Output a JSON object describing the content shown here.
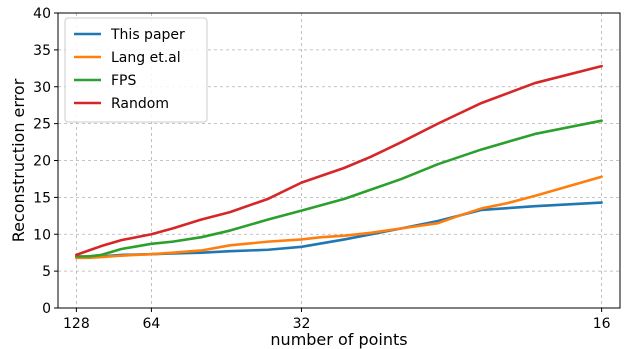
{
  "chart_data": {
    "type": "line",
    "title": "",
    "xlabel": "number of points",
    "ylabel": "Reconstruction error",
    "x_scale": "reciprocal",
    "x_ticks": [
      128,
      64,
      32,
      16
    ],
    "x_tick_labels": [
      "128",
      "64",
      "32",
      "16"
    ],
    "y_ticks": [
      0,
      5,
      10,
      15,
      20,
      25,
      30,
      35,
      40
    ],
    "y_tick_labels": [
      "0",
      "5",
      "10",
      "15",
      "20",
      "25",
      "30",
      "35",
      "40"
    ],
    "ylim": [
      0,
      40
    ],
    "grid": true,
    "legend_position": "top-left",
    "series": [
      {
        "name": "This paper",
        "color": "#1f77b4",
        "points": [
          [
            128,
            6.9
          ],
          [
            110,
            7.0
          ],
          [
            96,
            7.0
          ],
          [
            80,
            7.2
          ],
          [
            64,
            7.3
          ],
          [
            56,
            7.4
          ],
          [
            48,
            7.5
          ],
          [
            42,
            7.7
          ],
          [
            36,
            7.9
          ],
          [
            32,
            8.3
          ],
          [
            28,
            9.3
          ],
          [
            24,
            10.8
          ],
          [
            22,
            11.8
          ],
          [
            20,
            13.3
          ],
          [
            18,
            13.8
          ],
          [
            16,
            14.3
          ]
        ]
      },
      {
        "name": "Lang et.al",
        "color": "#ff7f0e",
        "points": [
          [
            128,
            6.8
          ],
          [
            110,
            6.8
          ],
          [
            96,
            6.9
          ],
          [
            80,
            7.1
          ],
          [
            64,
            7.3
          ],
          [
            56,
            7.5
          ],
          [
            48,
            7.8
          ],
          [
            42,
            8.5
          ],
          [
            36,
            9.0
          ],
          [
            32,
            9.3
          ],
          [
            30,
            9.6
          ],
          [
            28,
            9.8
          ],
          [
            26,
            10.2
          ],
          [
            24,
            10.8
          ],
          [
            22,
            11.5
          ],
          [
            21,
            12.5
          ],
          [
            20,
            13.5
          ],
          [
            19,
            14.2
          ],
          [
            18,
            15.2
          ],
          [
            16,
            17.8
          ]
        ]
      },
      {
        "name": "FPS",
        "color": "#2ca02c",
        "points": [
          [
            128,
            7.0
          ],
          [
            110,
            7.0
          ],
          [
            96,
            7.2
          ],
          [
            80,
            8.0
          ],
          [
            64,
            8.7
          ],
          [
            56,
            9.0
          ],
          [
            48,
            9.6
          ],
          [
            42,
            10.5
          ],
          [
            36,
            12.0
          ],
          [
            32,
            13.2
          ],
          [
            28,
            14.8
          ],
          [
            24,
            17.5
          ],
          [
            22,
            19.5
          ],
          [
            20,
            21.5
          ],
          [
            18,
            23.6
          ],
          [
            16,
            25.4
          ]
        ]
      },
      {
        "name": "Random",
        "color": "#d62728",
        "points": [
          [
            128,
            7.2
          ],
          [
            110,
            7.8
          ],
          [
            96,
            8.4
          ],
          [
            80,
            9.2
          ],
          [
            64,
            10.0
          ],
          [
            56,
            10.8
          ],
          [
            48,
            12.0
          ],
          [
            42,
            13.0
          ],
          [
            36,
            14.8
          ],
          [
            32,
            17.0
          ],
          [
            28,
            19.0
          ],
          [
            26,
            20.5
          ],
          [
            24,
            22.5
          ],
          [
            22,
            25.0
          ],
          [
            20,
            27.8
          ],
          [
            18,
            30.5
          ],
          [
            16,
            32.8
          ]
        ]
      }
    ]
  }
}
